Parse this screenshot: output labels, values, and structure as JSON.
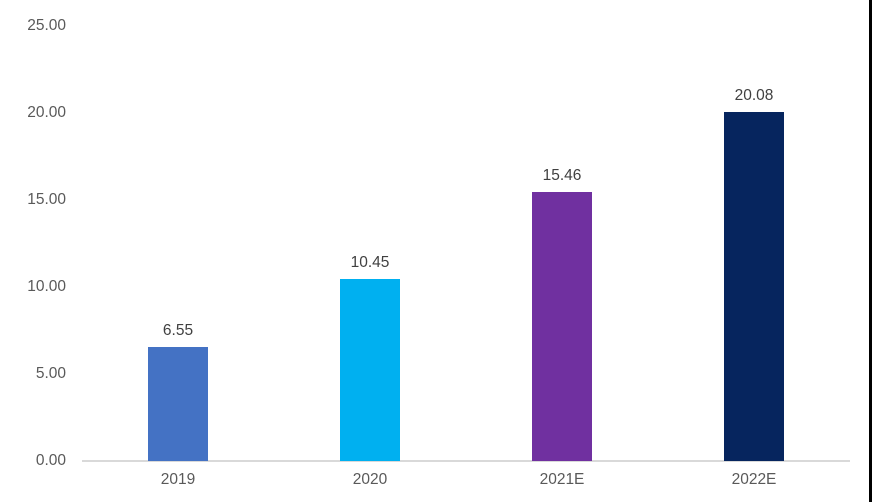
{
  "page": {
    "background": "#FFFFFF",
    "right_edge_color": "#000000"
  },
  "chart_data": {
    "type": "bar",
    "title": "",
    "xlabel": "",
    "ylabel": "",
    "categories": [
      "2019",
      "2020",
      "2021E",
      "2022E"
    ],
    "values": [
      6.55,
      10.45,
      15.46,
      20.08
    ],
    "value_labels": [
      "6.55",
      "10.45",
      "15.46",
      "20.08"
    ],
    "bar_colors": [
      "#4472C4",
      "#00B0F0",
      "#7030A0",
      "#06255E"
    ],
    "ylim": [
      0,
      25
    ],
    "yticks": [
      0,
      5,
      10,
      15,
      20,
      25
    ],
    "ytick_labels": [
      "0.00",
      "5.00",
      "10.00",
      "15.00",
      "20.00",
      "25.00"
    ],
    "grid": false,
    "legend": false,
    "axis_line_color": "#D9D9D9",
    "tick_label_color": "#595959",
    "data_label_color": "#404040"
  }
}
